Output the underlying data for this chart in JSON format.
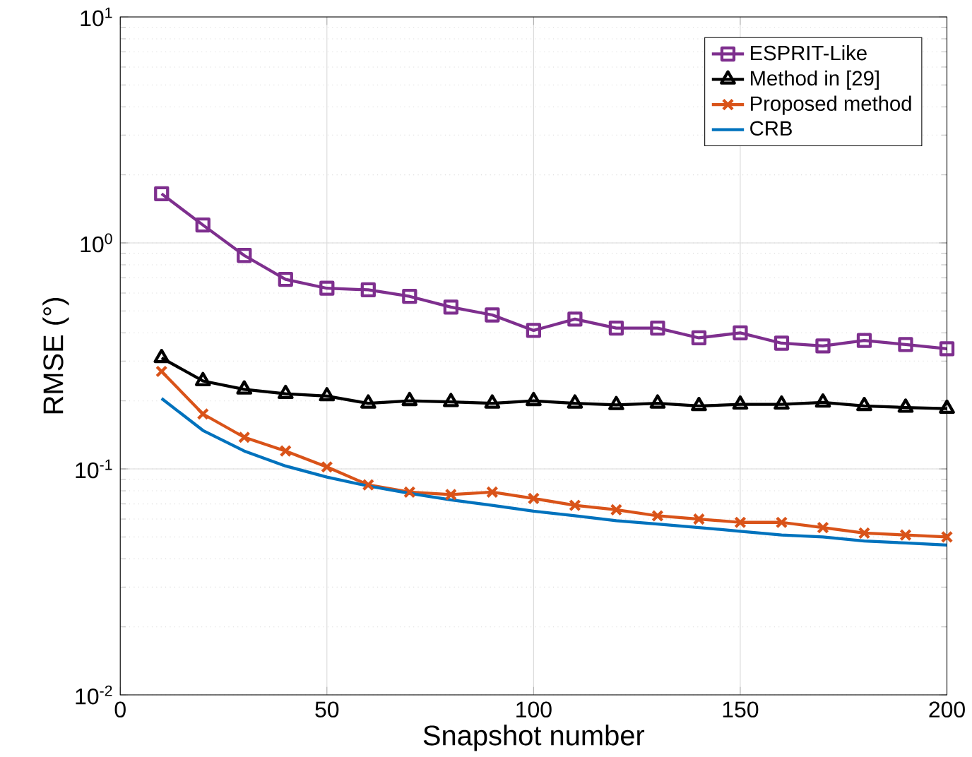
{
  "chart_data": {
    "type": "line",
    "xlabel": "Snapshot number",
    "ylabel": "RMSE (°)",
    "x": [
      10,
      20,
      30,
      40,
      50,
      60,
      70,
      80,
      90,
      100,
      110,
      120,
      130,
      140,
      150,
      160,
      170,
      180,
      190,
      200
    ],
    "series": [
      {
        "name": "ESPRIT-Like",
        "color": "#7e2f8e",
        "marker": "square",
        "values": [
          1.65,
          1.2,
          0.88,
          0.69,
          0.63,
          0.62,
          0.58,
          0.52,
          0.48,
          0.41,
          0.46,
          0.42,
          0.42,
          0.38,
          0.4,
          0.36,
          0.35,
          0.37,
          0.355,
          0.34
        ]
      },
      {
        "name": "Method in [29]",
        "color": "#000000",
        "marker": "triangle",
        "values": [
          0.31,
          0.245,
          0.225,
          0.215,
          0.21,
          0.195,
          0.2,
          0.198,
          0.195,
          0.2,
          0.195,
          0.192,
          0.195,
          0.19,
          0.193,
          0.193,
          0.197,
          0.19,
          0.187,
          0.185
        ]
      },
      {
        "name": "Proposed method",
        "color": "#d95319",
        "marker": "cross",
        "values": [
          0.27,
          0.175,
          0.138,
          0.12,
          0.102,
          0.085,
          0.079,
          0.077,
          0.079,
          0.074,
          0.069,
          0.066,
          0.062,
          0.06,
          0.058,
          0.058,
          0.055,
          0.052,
          0.051,
          0.05
        ]
      },
      {
        "name": "CRB",
        "color": "#0072bd",
        "marker": "none",
        "values": [
          0.205,
          0.148,
          0.12,
          0.103,
          0.092,
          0.084,
          0.078,
          0.073,
          0.069,
          0.065,
          0.062,
          0.059,
          0.057,
          0.055,
          0.053,
          0.051,
          0.05,
          0.048,
          0.047,
          0.046
        ]
      }
    ],
    "xlim": [
      0,
      200
    ],
    "xticks": [
      0,
      50,
      100,
      150,
      200
    ],
    "ylim": [
      0.01,
      10
    ],
    "yticks": [
      {
        "value": 0.01,
        "label": "10$^{-2}$"
      },
      {
        "value": 0.1,
        "label": "10$^{-1}$"
      },
      {
        "value": 1,
        "label": "10$^{0}$"
      },
      {
        "value": 10,
        "label": "10$^{1}$"
      }
    ],
    "log": "y",
    "grid": true,
    "legend": "top right"
  }
}
